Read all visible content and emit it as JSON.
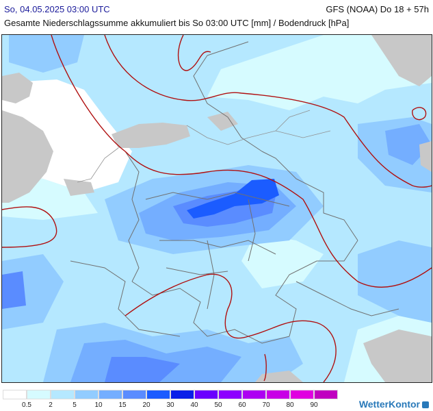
{
  "header": {
    "date": "So, 04.05.2025 03:00 UTC",
    "model": "GFS (NOAA) Do 18 + 57h",
    "subtitle": "Gesamte Niederschlagssumme akkumuliert bis So 03:00 UTC [mm] / Bodendruck [hPa]"
  },
  "legend": {
    "labels": [
      "0.5",
      "2",
      "5",
      "10",
      "15",
      "20",
      "30",
      "40",
      "50",
      "60",
      "70",
      "80",
      "90"
    ],
    "colors": [
      "#ffffff",
      "#d6fbff",
      "#b5e8ff",
      "#92ccff",
      "#74aeff",
      "#5a8cff",
      "#1b5cff",
      "#0a1fe8",
      "#6a00ff",
      "#8d00ff",
      "#ad00f2",
      "#c800e6",
      "#e000e0",
      "#c000c0"
    ]
  },
  "brand": "WetterKontor",
  "map": {
    "region": "Deutschland",
    "colors": {
      "land": "#c8c8c8",
      "pressure_isobars": "#b01010",
      "borders": "#707070",
      "frame": "#222222"
    }
  }
}
